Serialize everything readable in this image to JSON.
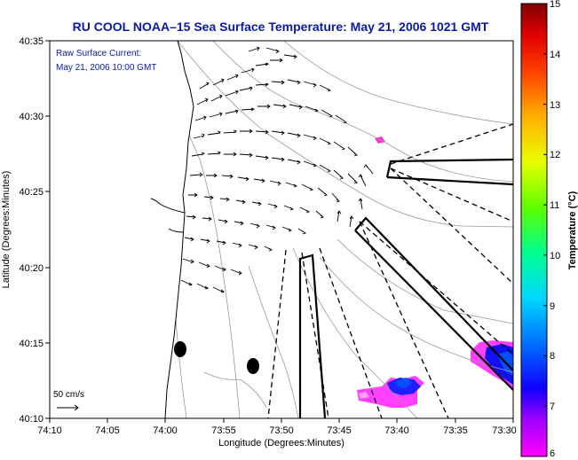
{
  "title": "RU COOL  NOAA–15  Sea Surface Temperature:  May 21, 2006 1021 GMT",
  "legend": {
    "line1": "Raw Surface Current:",
    "line2": "May 21, 2006 10:00 GMT",
    "scale_label": "50 cm/s"
  },
  "axes": {
    "x_label": "Longitude (Degrees:Minutes)",
    "y_label": "Latitude (Degrees:Minutes)",
    "x_ticks": [
      "74:10",
      "74:05",
      "74:00",
      "73:55",
      "73:50",
      "73:45",
      "73:40",
      "73:35",
      "73:30"
    ],
    "y_ticks": [
      "40:35",
      "40:30",
      "40:25",
      "40:20",
      "40:15",
      "40:10"
    ]
  },
  "colorbar": {
    "label": "Temperature (°C)",
    "ticks": [
      "15",
      "14",
      "13",
      "12",
      "11",
      "10",
      "9",
      "8",
      "7",
      "6"
    ],
    "colors": [
      "#ff00ff",
      "#8000ff",
      "#0000ff",
      "#0080ff",
      "#00e0ff",
      "#00ff80",
      "#80ff00",
      "#ffff00",
      "#ff8000",
      "#ff0000",
      "#800000"
    ]
  }
}
